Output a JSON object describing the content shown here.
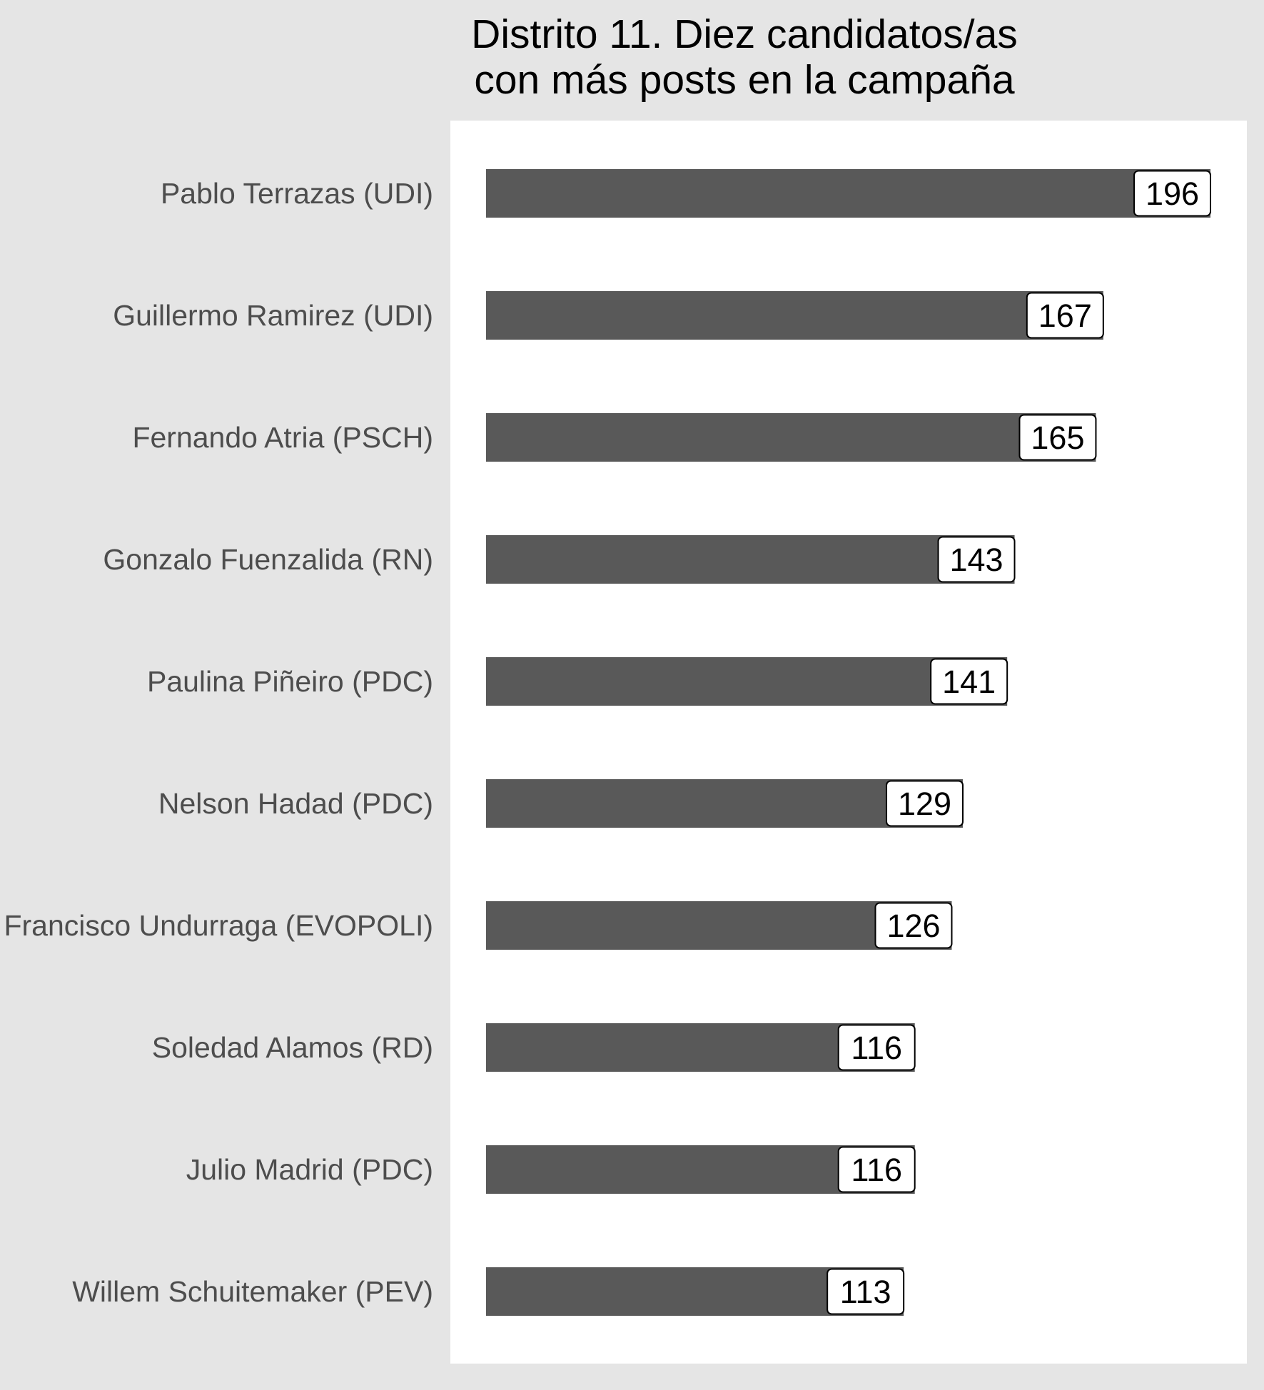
{
  "chart_data": {
    "type": "bar",
    "orientation": "horizontal",
    "title": "Distrito 11. Diez candidatos/as\ncon más posts en la campaña",
    "xlabel": "",
    "ylabel": "",
    "categories": [
      "Pablo Terrazas (UDI)",
      "Guillermo Ramirez (UDI)",
      "Fernando Atria (PSCH)",
      "Gonzalo Fuenzalida (RN)",
      "Paulina Piñeiro (PDC)",
      "Nelson Hadad (PDC)",
      "Francisco Undurraga (EVOPOLI)",
      "Soledad Alamos (RD)",
      "Julio Madrid (PDC)",
      "Willem Schuitemaker (PEV)"
    ],
    "values": [
      196,
      167,
      165,
      143,
      141,
      129,
      126,
      116,
      116,
      113
    ],
    "value_labels": [
      "196",
      "167",
      "165",
      "143",
      "141",
      "129",
      "126",
      "116",
      "116",
      "113"
    ],
    "xlim": [
      0,
      206
    ],
    "grid": false,
    "x_axis_ticks": false,
    "legend": "none",
    "colors": {
      "bar": "#595959",
      "outer_background": "#e5e5e5",
      "panel_background": "#ffffff",
      "category_text": "#4d4d4d",
      "title_text": "#000000",
      "label_border": "#000000",
      "label_fill": "#ffffff"
    }
  }
}
